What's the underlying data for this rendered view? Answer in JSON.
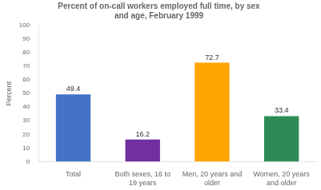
{
  "chart_data": {
    "type": "bar",
    "title": "Percent of on-call workers employed full time, by sex\nand age, February 1999",
    "categories": [
      "Total",
      "Both sexes, 16 to\n19 years",
      "Men, 20 years and\nolder",
      "Women, 20 years\nand older"
    ],
    "values": [
      49.4,
      16.2,
      72.7,
      33.4
    ],
    "colors": [
      "#4472c4",
      "#7030a0",
      "#ffa500",
      "#2e8b57"
    ],
    "ylabel": "Percent",
    "ylim": [
      0,
      100
    ],
    "yticks": [
      0,
      10,
      20,
      30,
      40,
      50,
      60,
      70,
      80,
      90,
      100
    ],
    "grid": false,
    "data_labels": true
  }
}
